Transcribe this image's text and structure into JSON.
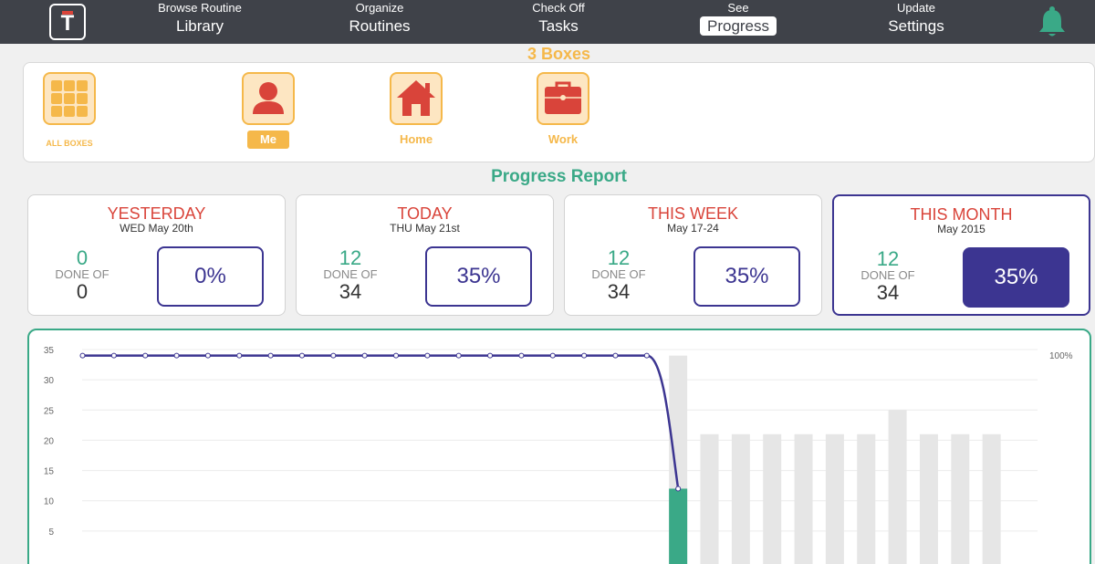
{
  "nav": {
    "logo_letter": "T",
    "items": [
      {
        "small": "Browse Routine",
        "big": "Library"
      },
      {
        "small": "Organize",
        "big": "Routines"
      },
      {
        "small": "Check Off",
        "big": "Tasks"
      },
      {
        "small": "See",
        "big": "Progress"
      },
      {
        "small": "Update",
        "big": "Settings"
      }
    ],
    "active_index": 3
  },
  "boxes": {
    "title": "3 Boxes",
    "items": [
      {
        "label": "ALL BOXES",
        "icon": "grid-icon"
      },
      {
        "label": "Me",
        "icon": "person-icon"
      },
      {
        "label": "Home",
        "icon": "house-icon"
      },
      {
        "label": "Work",
        "icon": "briefcase-icon"
      }
    ],
    "selected": "Me"
  },
  "report": {
    "title": "Progress Report",
    "done_of_label": "DONE OF",
    "cards": [
      {
        "title": "YESTERDAY",
        "sub": "WED May 20th",
        "done": "0",
        "total": "0",
        "percent": "0%"
      },
      {
        "title": "TODAY",
        "sub": "THU May 21st",
        "done": "12",
        "total": "34",
        "percent": "35%"
      },
      {
        "title": "THIS WEEK",
        "sub": "May 17-24",
        "done": "12",
        "total": "34",
        "percent": "35%"
      },
      {
        "title": "THIS MONTH",
        "sub": "May 2015",
        "done": "12",
        "total": "34",
        "percent": "35%"
      }
    ],
    "active_card": "THIS MONTH"
  },
  "colors": {
    "nav_bg": "#3f4249",
    "accent_orange": "#f5b84a",
    "accent_green": "#3aa987",
    "accent_red": "#d9443a",
    "accent_navy": "#3c3591",
    "bar_grey": "#e6e6e6"
  },
  "chart_data": {
    "type": "bar",
    "yticks": [
      "35",
      "30",
      "25",
      "20",
      "15",
      "10",
      "5"
    ],
    "y_right_label": "100%",
    "ylim": [
      0,
      35
    ],
    "grid": true,
    "line_series": [
      34,
      34,
      34,
      34,
      34,
      34,
      34,
      34,
      34,
      34,
      34,
      34,
      34,
      34,
      34,
      34,
      34,
      34,
      34,
      12
    ],
    "total_bars": [
      null,
      null,
      null,
      null,
      null,
      null,
      null,
      null,
      null,
      null,
      null,
      null,
      null,
      null,
      null,
      null,
      null,
      null,
      null,
      34,
      21,
      21,
      21,
      21,
      21,
      21,
      25,
      21,
      21,
      21
    ],
    "done_bars": [
      null,
      null,
      null,
      null,
      null,
      null,
      null,
      null,
      null,
      null,
      null,
      null,
      null,
      null,
      null,
      null,
      null,
      null,
      null,
      12,
      0,
      0,
      0,
      0,
      0,
      0,
      0,
      0,
      0,
      0
    ]
  }
}
